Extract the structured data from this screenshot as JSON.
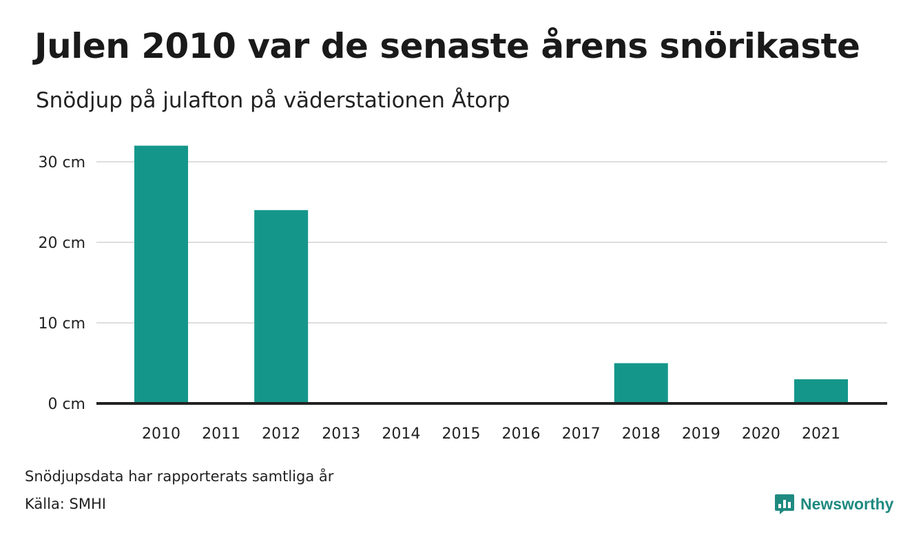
{
  "title": "Julen 2010 var de senaste årens snörikaste",
  "subtitle": "Snödjup på julafton på väderstationen Åtorp",
  "note": "Snödjupsdata har rapporterats samtliga år",
  "source": "Källa: SMHI",
  "brand": "Newsworthy",
  "colors": {
    "bar": "#14978a",
    "grid": "#dddddd",
    "axis": "#222222",
    "brand": "#1f8a80"
  },
  "chart_data": {
    "type": "bar",
    "categories": [
      "2010",
      "2011",
      "2012",
      "2013",
      "2014",
      "2015",
      "2016",
      "2017",
      "2018",
      "2019",
      "2020",
      "2021"
    ],
    "values": [
      32,
      0,
      24,
      0,
      0,
      0,
      0,
      0,
      5,
      0,
      0,
      3
    ],
    "title": "Julen 2010 var de senaste årens snörikaste",
    "subtitle": "Snödjup på julafton på väderstationen Åtorp",
    "xlabel": "",
    "ylabel": "",
    "ylim": [
      0,
      32
    ],
    "yticks": [
      0,
      10,
      20,
      30
    ],
    "ytick_labels": [
      "0 cm",
      "10 cm",
      "20 cm",
      "30 cm"
    ],
    "grid": true,
    "legend": "none"
  }
}
